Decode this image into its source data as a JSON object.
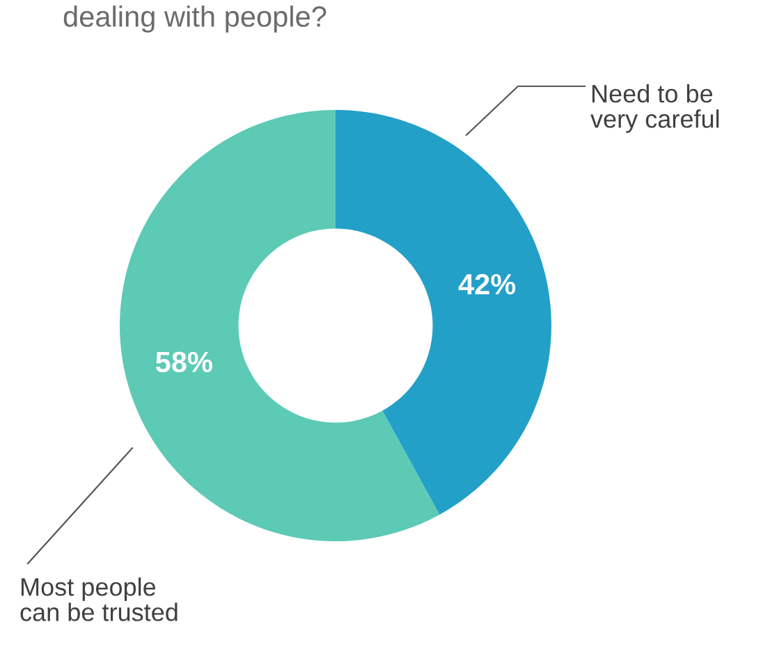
{
  "chart_data": {
    "type": "donut",
    "title": "dealing with people?",
    "categories": [
      "Need to be very careful",
      "Most people can be trusted"
    ],
    "values": [
      42,
      58
    ],
    "colors": [
      "#23a0c8",
      "#5ccab4"
    ],
    "value_labels": [
      "42%",
      "58%"
    ]
  }
}
